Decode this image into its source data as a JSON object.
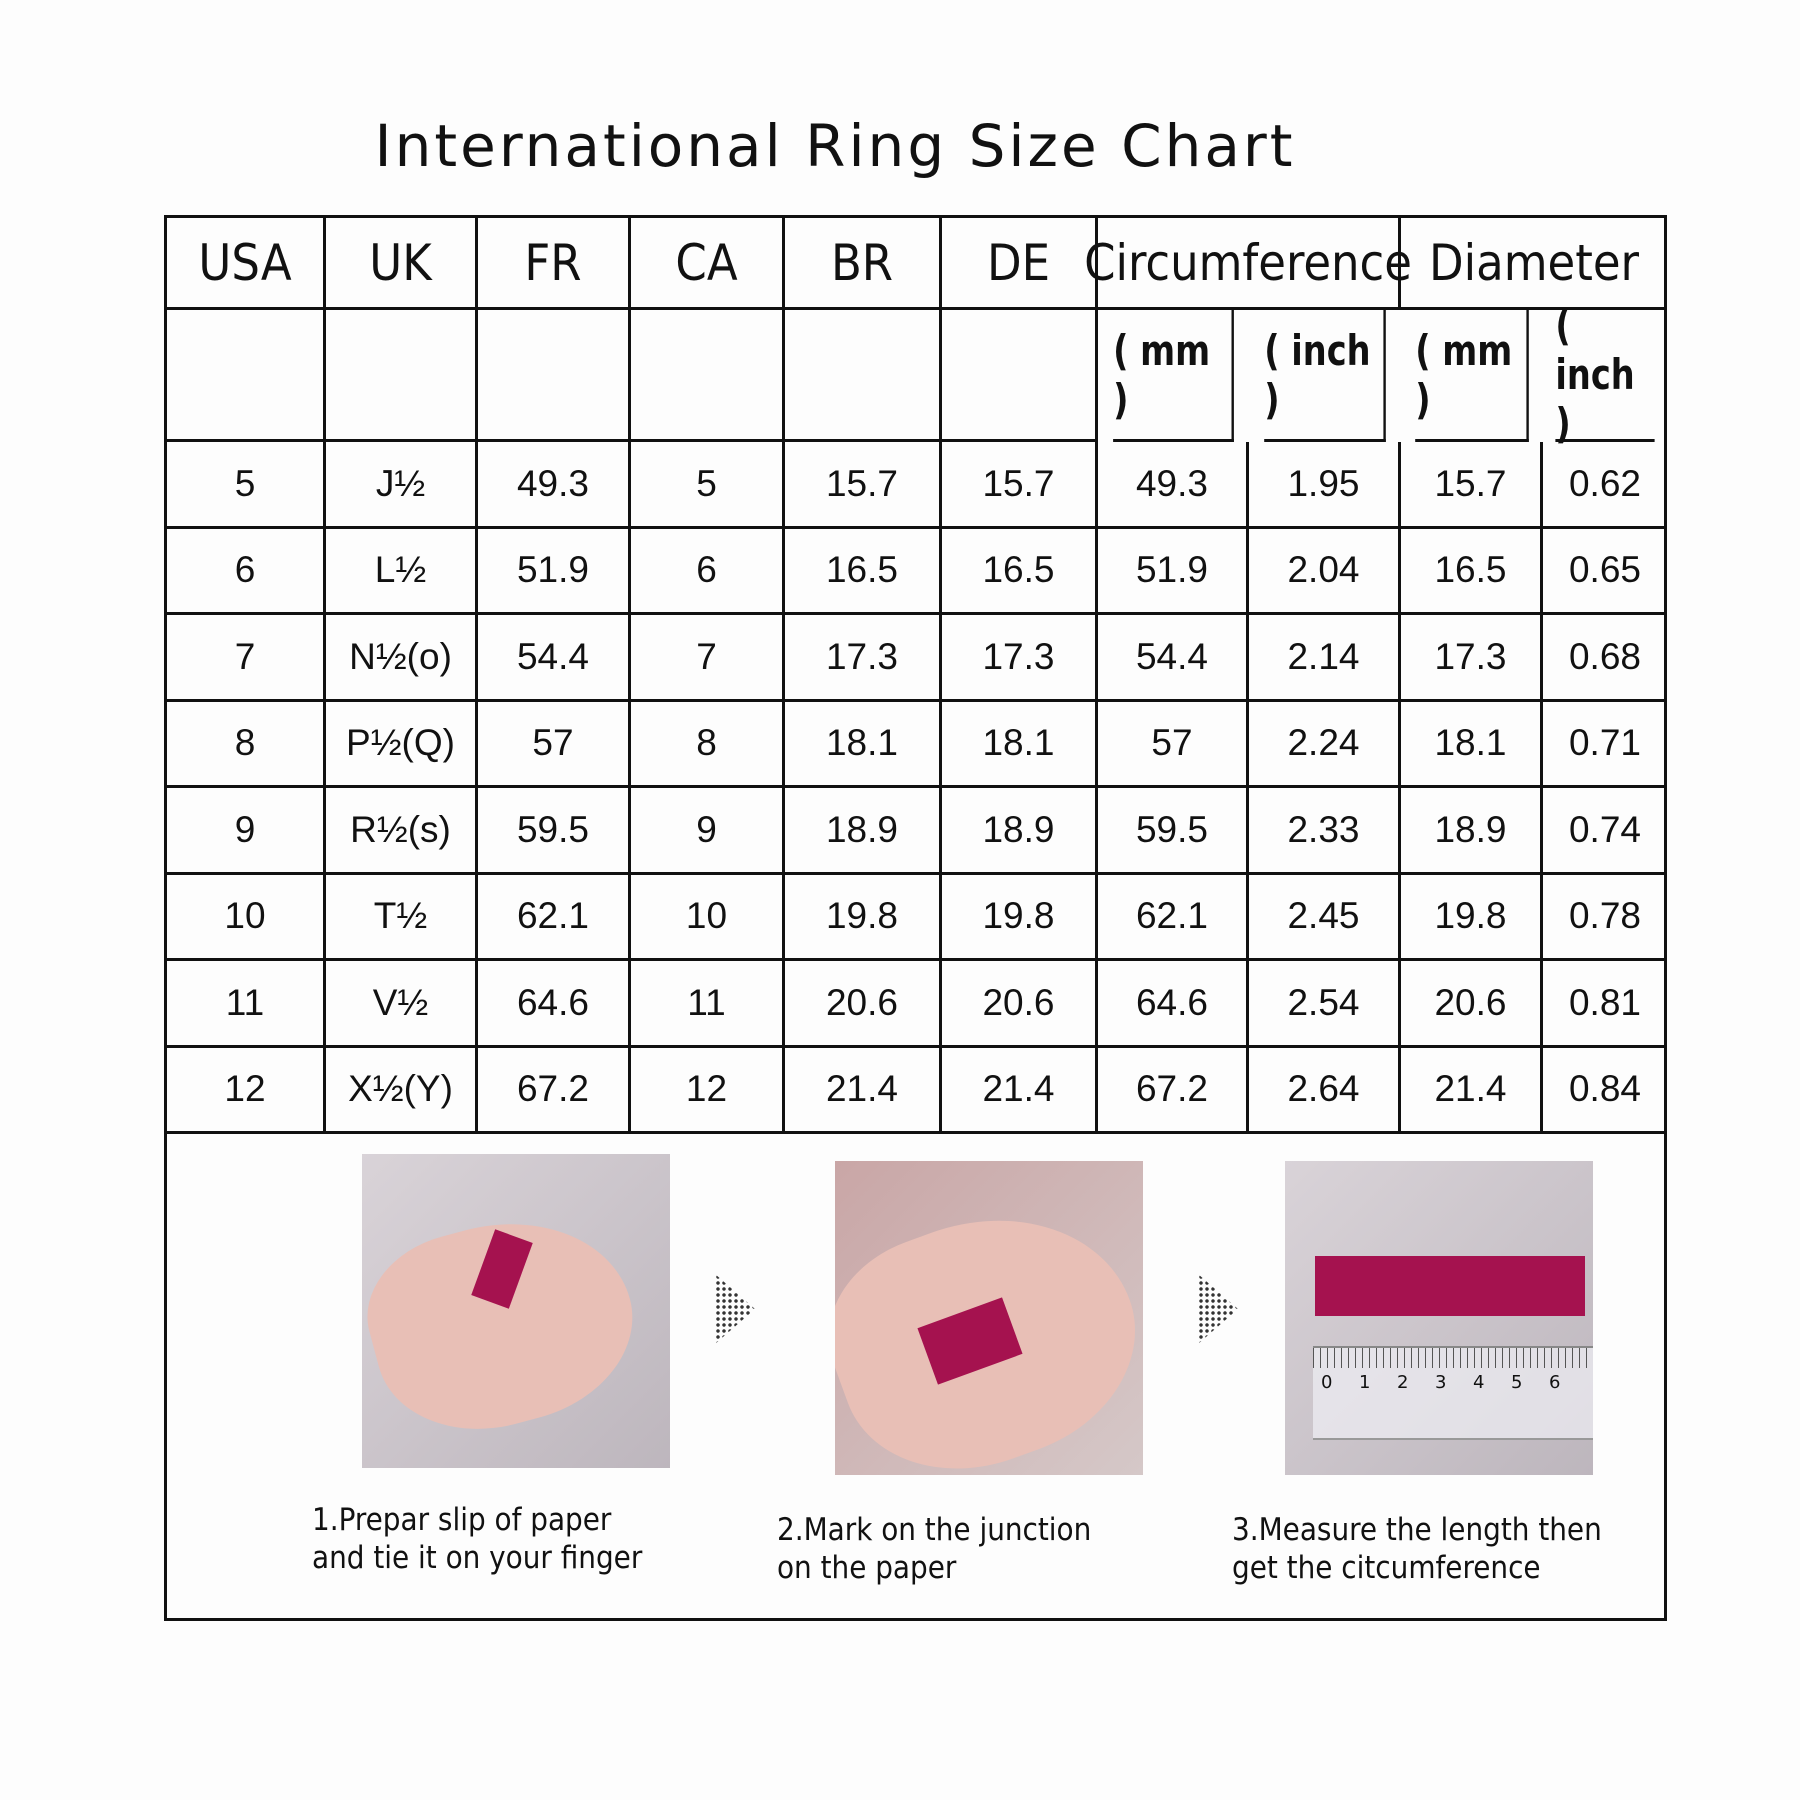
{
  "title": "International Ring Size Chart",
  "table": {
    "headers": [
      "USA",
      "UK",
      "FR",
      "CA",
      "BR",
      "DE",
      "Circumference",
      "Diameter"
    ],
    "units": [
      "( mm )",
      "( inch )",
      "( mm )",
      "( inch )"
    ],
    "rows": [
      [
        "5",
        "J½",
        "49.3",
        "5",
        "15.7",
        "15.7",
        "49.3",
        "1.95",
        "15.7",
        "0.62"
      ],
      [
        "6",
        "L½",
        "51.9",
        "6",
        "16.5",
        "16.5",
        "51.9",
        "2.04",
        "16.5",
        "0.65"
      ],
      [
        "7",
        "N½(o)",
        "54.4",
        "7",
        "17.3",
        "17.3",
        "54.4",
        "2.14",
        "17.3",
        "0.68"
      ],
      [
        "8",
        "P½(Q)",
        "57",
        "8",
        "18.1",
        "18.1",
        "57",
        "2.24",
        "18.1",
        "0.71"
      ],
      [
        "9",
        "R½(s)",
        "59.5",
        "9",
        "18.9",
        "18.9",
        "59.5",
        "2.33",
        "18.9",
        "0.74"
      ],
      [
        "10",
        "T½",
        "62.1",
        "10",
        "19.8",
        "19.8",
        "62.1",
        "2.45",
        "19.8",
        "0.78"
      ],
      [
        "11",
        "V½",
        "64.6",
        "11",
        "20.6",
        "20.6",
        "64.6",
        "2.54",
        "20.6",
        "0.81"
      ],
      [
        "12",
        "X½(Y)",
        "67.2",
        "12",
        "21.4",
        "21.4",
        "67.2",
        "2.64",
        "21.4",
        "0.84"
      ]
    ]
  },
  "steps": [
    {
      "line1": "1.Prepar slip of paper",
      "line2": "and tie it on your finger"
    },
    {
      "line1": "2.Mark on the junction",
      "line2": "on the paper"
    },
    {
      "line1": "3.Measure the length then",
      "line2": "get the citcumference"
    }
  ],
  "ruler_numbers": [
    "0",
    "1",
    "2",
    "3",
    "4",
    "5",
    "6"
  ],
  "colors": {
    "strip": "#a5124f",
    "border": "#111111"
  }
}
